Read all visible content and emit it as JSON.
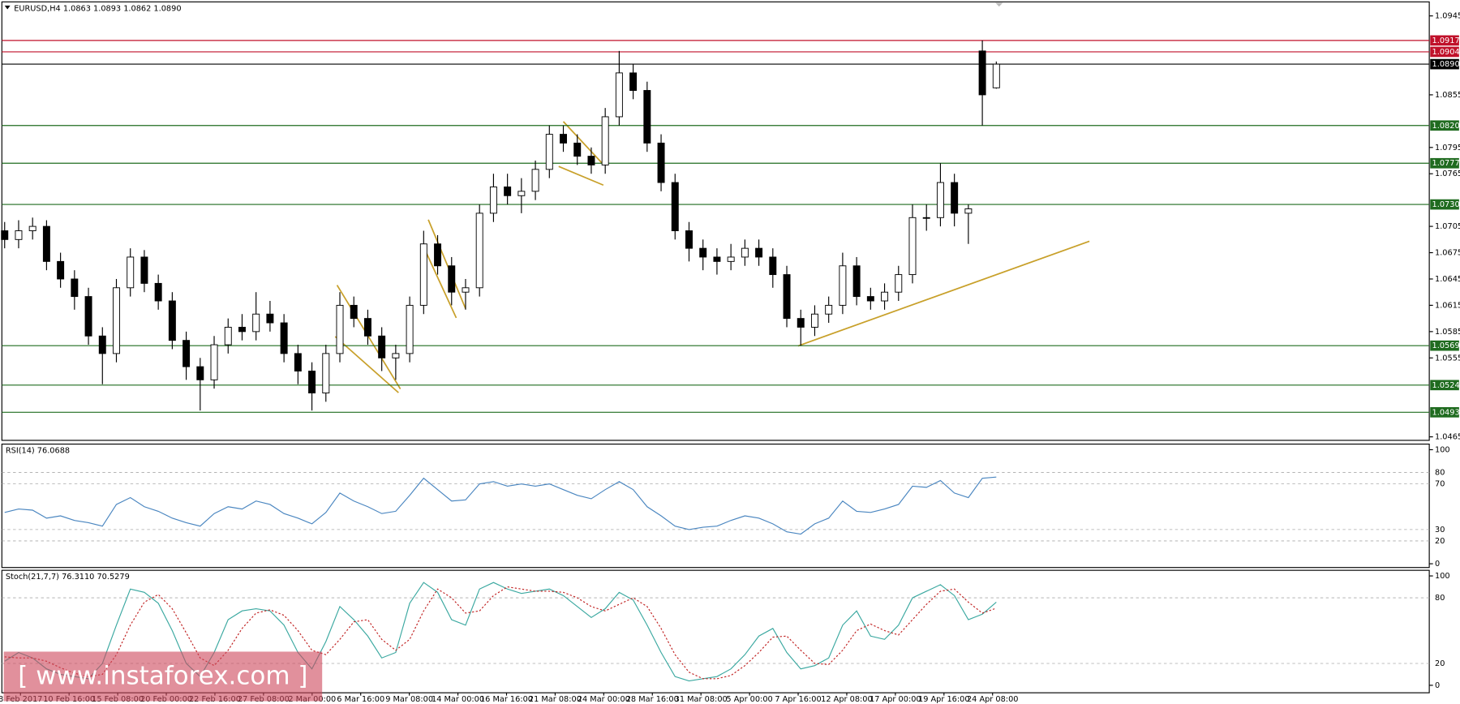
{
  "chart_data": [
    {
      "type": "candlestick",
      "title": "EURUSD,H4  1.0863 1.0893 1.0862 1.0890",
      "ylim": [
        1.0461,
        1.0961
      ],
      "yticks": [
        1.0465,
        1.0555,
        1.0585,
        1.0615,
        1.0645,
        1.0675,
        1.0705,
        1.0765,
        1.0795,
        1.0855,
        1.0945
      ],
      "x_labels": [
        "8 Feb 2017",
        "10 Feb 16:00",
        "15 Feb 08:00",
        "20 Feb 00:00",
        "22 Feb 16:00",
        "27 Feb 08:00",
        "2 Mar 00:00",
        "6 Mar 16:00",
        "9 Mar 08:00",
        "14 Mar 00:00",
        "16 Mar 16:00",
        "21 Mar 08:00",
        "24 Mar 00:00",
        "28 Mar 16:00",
        "31 Mar 08:00",
        "5 Apr 00:00",
        "7 Apr 16:00",
        "12 Apr 08:00",
        "17 Apr 00:00",
        "19 Apr 16:00",
        "24 Apr 08:00"
      ],
      "color": "#000000",
      "open": [
        1.07,
        1.069,
        1.07,
        1.0705,
        1.0665,
        1.0645,
        1.0625,
        1.058,
        1.056,
        1.0635,
        1.067,
        1.064,
        1.062,
        1.0575,
        1.0545,
        1.053,
        1.057,
        1.059,
        1.0585,
        1.0605,
        1.0595,
        1.056,
        1.054,
        1.0515,
        1.056,
        1.0615,
        1.06,
        1.058,
        1.0555,
        1.056,
        1.0615,
        1.0685,
        1.066,
        1.063,
        1.0635,
        1.072,
        1.075,
        1.074,
        1.0745,
        1.077,
        1.081,
        1.08,
        1.0785,
        1.0775,
        1.083,
        1.088,
        1.086,
        1.08,
        1.0755,
        1.07,
        1.068,
        1.067,
        1.0665,
        1.067,
        1.068,
        1.067,
        1.065,
        1.06,
        1.059,
        1.0605,
        1.0615,
        1.066,
        1.0625,
        1.062,
        1.063,
        1.065,
        1.0715,
        1.0715,
        1.0755,
        1.072,
        1.0905,
        1.0863
      ],
      "high": [
        1.071,
        1.0712,
        1.0715,
        1.0712,
        1.0675,
        1.0655,
        1.0635,
        1.059,
        1.0645,
        1.068,
        1.0678,
        1.065,
        1.063,
        1.0585,
        1.0555,
        1.058,
        1.06,
        1.0605,
        1.063,
        1.062,
        1.0605,
        1.057,
        1.055,
        1.057,
        1.063,
        1.0625,
        1.061,
        1.059,
        1.057,
        1.0625,
        1.07,
        1.0695,
        1.067,
        1.0645,
        1.073,
        1.0765,
        1.0765,
        1.076,
        1.078,
        1.082,
        1.082,
        1.081,
        1.0795,
        1.084,
        1.0905,
        1.089,
        1.087,
        1.081,
        1.0765,
        1.071,
        1.069,
        1.068,
        1.0685,
        1.069,
        1.069,
        1.068,
        1.066,
        1.061,
        1.0615,
        1.0625,
        1.0675,
        1.067,
        1.0635,
        1.064,
        1.066,
        1.073,
        1.073,
        1.0777,
        1.0765,
        1.073,
        1.0917,
        1.0893
      ],
      "low": [
        1.068,
        1.068,
        1.069,
        1.0655,
        1.0635,
        1.061,
        1.057,
        1.0525,
        1.055,
        1.0625,
        1.063,
        1.061,
        1.0565,
        1.053,
        1.0495,
        1.052,
        1.056,
        1.0575,
        1.0575,
        1.0585,
        1.055,
        1.0525,
        1.0495,
        1.0505,
        1.055,
        1.059,
        1.057,
        1.054,
        1.053,
        1.055,
        1.0605,
        1.065,
        1.0615,
        1.061,
        1.0625,
        1.071,
        1.073,
        1.072,
        1.0735,
        1.076,
        1.079,
        1.0775,
        1.0765,
        1.0765,
        1.082,
        1.085,
        1.079,
        1.0745,
        1.069,
        1.0665,
        1.0655,
        1.065,
        1.0655,
        1.066,
        1.066,
        1.0635,
        1.059,
        1.0569,
        1.058,
        1.0595,
        1.0605,
        1.0615,
        1.061,
        1.061,
        1.062,
        1.064,
        1.07,
        1.0705,
        1.0705,
        1.0685,
        1.082,
        1.0862
      ],
      "close": [
        1.069,
        1.07,
        1.0705,
        1.0665,
        1.0645,
        1.0625,
        1.058,
        1.056,
        1.0635,
        1.067,
        1.064,
        1.062,
        1.0575,
        1.0545,
        1.053,
        1.057,
        1.059,
        1.0585,
        1.0605,
        1.0595,
        1.056,
        1.054,
        1.0515,
        1.056,
        1.0615,
        1.06,
        1.058,
        1.0555,
        1.056,
        1.0615,
        1.0685,
        1.066,
        1.063,
        1.0635,
        1.072,
        1.075,
        1.074,
        1.0745,
        1.077,
        1.081,
        1.08,
        1.0785,
        1.0775,
        1.083,
        1.088,
        1.086,
        1.08,
        1.0755,
        1.07,
        1.068,
        1.067,
        1.0665,
        1.067,
        1.068,
        1.067,
        1.065,
        1.06,
        1.059,
        1.0605,
        1.0615,
        1.066,
        1.0625,
        1.062,
        1.063,
        1.065,
        1.0715,
        1.0715,
        1.0755,
        1.072,
        1.0725,
        1.0855,
        1.089
      ],
      "levels": [
        {
          "value": 1.0917,
          "label": "1.0917",
          "color": "#c0102a"
        },
        {
          "value": 1.0904,
          "label": "1.0904",
          "color": "#c0102a"
        },
        {
          "value": 1.089,
          "label": "1.0890",
          "color": "#000000"
        },
        {
          "value": 1.082,
          "label": "1.0820",
          "color": "#1f6b1f"
        },
        {
          "value": 1.0777,
          "label": "1.0777",
          "color": "#1f6b1f"
        },
        {
          "value": 1.073,
          "label": "1.0730",
          "color": "#1f6b1f"
        },
        {
          "value": 1.0569,
          "label": "1.0569",
          "color": "#1f6b1f"
        },
        {
          "value": 1.0524,
          "label": "1.0524",
          "color": "#1f6b1f"
        },
        {
          "value": 1.0493,
          "label": "1.0493",
          "color": "#1f6b1f"
        }
      ]
    },
    {
      "type": "line",
      "title": "RSI(14) 76.0688",
      "ylim": [
        0,
        100
      ],
      "yticks": [
        0,
        20,
        30,
        70,
        80,
        100
      ],
      "color": "#4a86c0",
      "values": [
        45,
        48,
        47,
        40,
        42,
        38,
        36,
        33,
        52,
        58,
        50,
        46,
        40,
        36,
        33,
        44,
        50,
        48,
        55,
        52,
        44,
        40,
        35,
        45,
        62,
        55,
        50,
        44,
        46,
        60,
        75,
        65,
        55,
        56,
        70,
        72,
        68,
        70,
        68,
        70,
        65,
        60,
        57,
        65,
        72,
        65,
        50,
        42,
        33,
        30,
        32,
        33,
        38,
        42,
        40,
        35,
        28,
        26,
        35,
        40,
        55,
        46,
        45,
        48,
        52,
        68,
        67,
        73,
        62,
        58,
        75,
        76
      ]
    },
    {
      "type": "line",
      "title": "Stoch(21,7,7) 76.3110 70.5279",
      "ylim": [
        0,
        100
      ],
      "yticks": [
        0,
        20,
        80,
        100
      ],
      "series": [
        {
          "color": "#3aa8a0",
          "values": [
            22,
            30,
            25,
            15,
            10,
            8,
            6,
            20,
            55,
            88,
            85,
            75,
            50,
            20,
            8,
            30,
            60,
            68,
            70,
            68,
            55,
            30,
            15,
            40,
            72,
            60,
            45,
            25,
            30,
            75,
            94,
            85,
            60,
            55,
            88,
            94,
            88,
            84,
            86,
            88,
            82,
            72,
            62,
            70,
            85,
            78,
            55,
            30,
            8,
            4,
            6,
            8,
            15,
            28,
            45,
            52,
            30,
            15,
            18,
            25,
            55,
            68,
            45,
            42,
            55,
            80,
            86,
            92,
            82,
            60,
            65,
            76
          ]
        },
        {
          "color": "#c02020",
          "dash": true,
          "values": [
            26,
            25,
            25,
            22,
            16,
            11,
            8,
            10,
            28,
            55,
            76,
            83,
            70,
            48,
            25,
            18,
            32,
            52,
            66,
            69,
            64,
            50,
            32,
            28,
            42,
            58,
            60,
            42,
            32,
            42,
            68,
            88,
            80,
            66,
            68,
            82,
            90,
            88,
            86,
            86,
            85,
            80,
            72,
            68,
            74,
            80,
            72,
            52,
            28,
            12,
            6,
            6,
            9,
            18,
            30,
            44,
            45,
            32,
            20,
            19,
            32,
            50,
            56,
            50,
            46,
            60,
            74,
            86,
            88,
            76,
            66,
            70.5
          ]
        }
      ]
    }
  ],
  "watermark": "[ www.instaforex.com ]"
}
